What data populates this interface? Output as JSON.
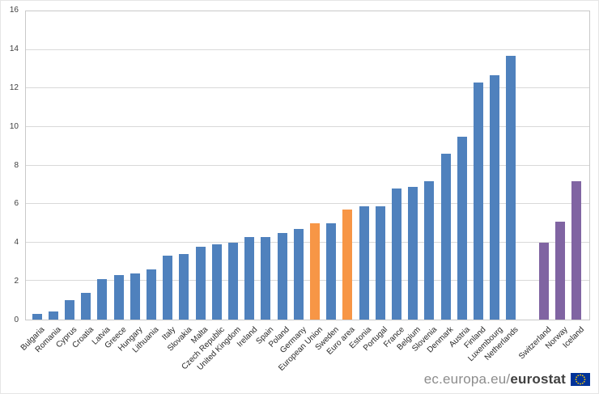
{
  "chart_data": {
    "type": "bar",
    "title": "",
    "xlabel": "",
    "ylabel": "",
    "ylim": [
      0,
      16
    ],
    "yticks": [
      0,
      2,
      4,
      6,
      8,
      10,
      12,
      14,
      16
    ],
    "grid": true,
    "legend_position": "none",
    "categories": [
      "Bulgaria",
      "Romania",
      "Cyprus",
      "Croatia",
      "Latvia",
      "Greece",
      "Hungary",
      "Lithuania",
      "Italy",
      "Slovakia",
      "Malta",
      "Czech Republic",
      "United Kingdom",
      "Ireland",
      "Spain",
      "Poland",
      "Germany",
      "European Union",
      "Sweden",
      "Euro area",
      "Estonia",
      "Portugal",
      "France",
      "Belgium",
      "Slovenia",
      "Denmark",
      "Austria",
      "Finland",
      "Luxembourg",
      "Netherlands",
      "Switzerland",
      "Norway",
      "Iceland"
    ],
    "values": [
      0.3,
      0.4,
      1.0,
      1.4,
      2.1,
      2.3,
      2.4,
      2.6,
      3.3,
      3.4,
      3.8,
      3.9,
      4.0,
      4.3,
      4.3,
      4.5,
      4.7,
      5.0,
      5.0,
      5.7,
      5.9,
      5.9,
      6.8,
      6.9,
      7.2,
      8.6,
      9.5,
      12.3,
      12.7,
      13.7,
      4.0,
      5.1,
      7.2
    ],
    "bar_groups": [
      "member",
      "member",
      "member",
      "member",
      "member",
      "member",
      "member",
      "member",
      "member",
      "member",
      "member",
      "member",
      "member",
      "member",
      "member",
      "member",
      "member",
      "aggregate",
      "member",
      "aggregate",
      "member",
      "member",
      "member",
      "member",
      "member",
      "member",
      "member",
      "member",
      "member",
      "member",
      "non_eu",
      "non_eu",
      "non_eu"
    ],
    "gap_after_index": 29,
    "colors": {
      "member": "#4f81bd",
      "aggregate": "#f79646",
      "non_eu": "#8064a2"
    }
  },
  "watermark": {
    "site_prefix": "ec.europa.eu/",
    "brand": "eurostat"
  },
  "flag_colors": {
    "background": "#003399",
    "stars": "#ffcc00"
  }
}
